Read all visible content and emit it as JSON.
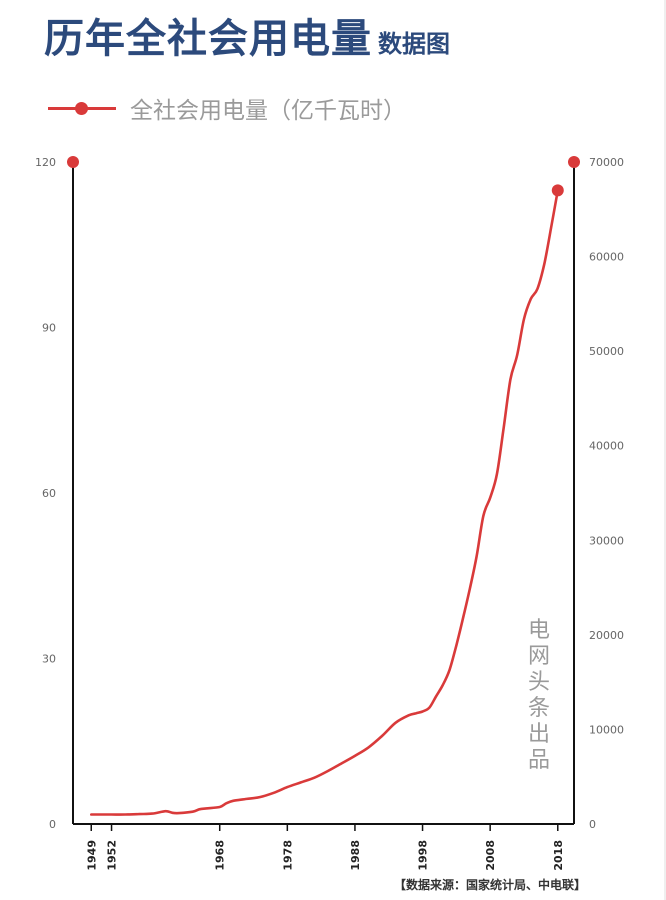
{
  "header": {
    "title": "历年全社会用电量",
    "subtitle": "数据图"
  },
  "watermark": "电网头条出品",
  "source": "【数据来源：国家统计局、中电联】",
  "colors": {
    "title": "#2c4a7c",
    "series": "#d93a3a",
    "axis": "#111111",
    "muted": "#9a9a9a"
  },
  "chart_data": {
    "type": "line",
    "series": [
      {
        "name": "全社会用电量（亿千瓦时）",
        "x": [
          1949,
          1950,
          1952,
          1954,
          1956,
          1958,
          1960,
          1961,
          1962,
          1964,
          1965,
          1966,
          1968,
          1969,
          1970,
          1972,
          1974,
          1976,
          1978,
          1980,
          1982,
          1984,
          1986,
          1988,
          1990,
          1992,
          1994,
          1996,
          1997,
          1998,
          1999,
          2000,
          2001,
          2002,
          2003,
          2004,
          2005,
          2006,
          2007,
          2008,
          2009,
          2010,
          2011,
          2012,
          2013,
          2014,
          2015,
          2016,
          2017,
          2018
        ],
        "values": [
          1000,
          1000,
          1000,
          1000,
          1050,
          1100,
          1350,
          1180,
          1150,
          1300,
          1550,
          1650,
          1800,
          2200,
          2450,
          2650,
          2850,
          3300,
          3900,
          4400,
          4900,
          5600,
          6400,
          7200,
          8100,
          9300,
          10700,
          11500,
          11700,
          11900,
          12300,
          13500,
          14700,
          16300,
          18900,
          21800,
          24900,
          28300,
          32600,
          34500,
          37000,
          41900,
          47000,
          49600,
          53400,
          55500,
          56600,
          59200,
          63000,
          67000
        ]
      }
    ],
    "left_axis": {
      "min": 0,
      "max": 120,
      "ticks": [
        0,
        30,
        60,
        90,
        120
      ]
    },
    "right_axis": {
      "min": 0,
      "max": 70000,
      "ticks": [
        0,
        10000,
        20000,
        30000,
        40000,
        50000,
        60000,
        70000
      ]
    },
    "xlim": [
      1946.3,
      2020.4
    ],
    "x_ticks": [
      1949,
      1952,
      1968,
      1978,
      1988,
      1998,
      2008,
      2018
    ],
    "grid": false,
    "legend": "top-left"
  }
}
